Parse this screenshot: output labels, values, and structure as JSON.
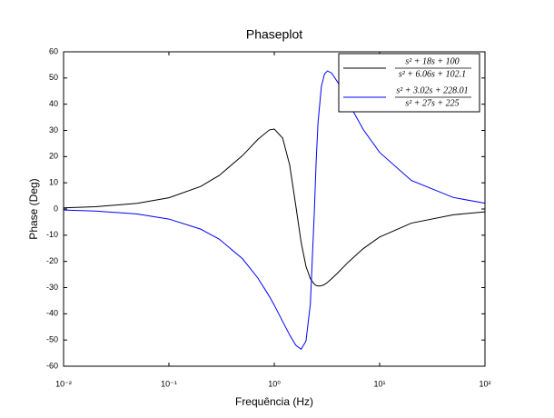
{
  "chart_data": {
    "type": "line",
    "title": "Phaseplot",
    "x_label": "Frequência (Hz)",
    "y_label": "Phase (Deg)",
    "x_scale": "log",
    "grid": false,
    "legend_position": "upper right",
    "x": [
      0.01,
      0.02,
      0.05,
      0.1,
      0.2,
      0.3,
      0.5,
      0.7,
      0.9,
      1,
      1.2,
      1.4,
      1.6,
      1.8,
      2,
      2.2,
      2.4,
      2.5,
      2.6,
      2.8,
      3,
      3.2,
      3.5,
      4,
      5,
      7,
      10,
      20,
      50,
      100
    ],
    "series": [
      {
        "name": {
          "numerator": "s² + 18s + 100",
          "denominator": "s² + 6.06s + 102.1"
        },
        "color": "#000000",
        "values": [
          0.43,
          0.87,
          2.17,
          4.3,
          8.6,
          12.8,
          20.4,
          26.6,
          30.2,
          30.5,
          27.1,
          16.8,
          1.3,
          -12.8,
          -21.9,
          -26.6,
          -28.7,
          -29.2,
          -29.4,
          -29.3,
          -28.8,
          -28.0,
          -26.6,
          -24.4,
          -20.4,
          -15.1,
          -10.7,
          -5.4,
          -2.2,
          -1.1
        ]
      },
      {
        "name": {
          "numerator": "s² + 3.02s + 228.01",
          "denominator": "s² + 27s + 225"
        },
        "color": "#0000ff",
        "values": [
          -0.38,
          -0.77,
          -1.92,
          -3.84,
          -7.68,
          -11.5,
          -19.0,
          -26.4,
          -33.4,
          -36.7,
          -42.9,
          -48.1,
          -52.0,
          -53.5,
          -50.4,
          -36.3,
          -1.1,
          18.6,
          32.8,
          46.8,
          51.6,
          52.7,
          51.9,
          48.4,
          40.9,
          30.3,
          21.6,
          10.9,
          4.4,
          2.2
        ]
      }
    ],
    "xlim": [
      0.01,
      100
    ],
    "xticks": [
      {
        "value": 0.01,
        "label": "10⁻²"
      },
      {
        "value": 0.1,
        "label": "10⁻¹"
      },
      {
        "value": 1,
        "label": "10⁰"
      },
      {
        "value": 10,
        "label": "10¹"
      },
      {
        "value": 100,
        "label": "10²"
      }
    ],
    "ylim": [
      -60,
      60
    ],
    "yticks": [
      -60,
      -50,
      -40,
      -30,
      -20,
      -10,
      0,
      10,
      20,
      30,
      40,
      50,
      60
    ]
  }
}
